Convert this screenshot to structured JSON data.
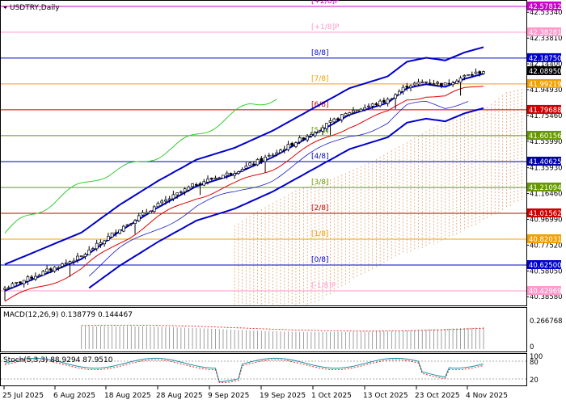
{
  "symbol_title": "USDTRY,Daily",
  "macd_label": "MACD(12,26,9) 0.138779 0.144467",
  "stoch_label": "Stoch(5,3,3) 88.9294 87.9510",
  "colors": {
    "bull_body": "#ffffff",
    "bear_body": "#000000",
    "bollinger": "#0000cc",
    "envelope_red": "#e00000",
    "envelope_thin": "#1a1acc",
    "green_line": "#33cc33",
    "ichimoku_cloud": "#e0a070"
  },
  "price_axis": {
    "ylim": [
      40.32,
      42.62
    ],
    "ticks": [
      "42.53340",
      "42.33810",
      "42.14400",
      "41.94930",
      "41.75460",
      "41.55990",
      "41.35930",
      "41.16460",
      "40.96990",
      "40.77520",
      "40.58050",
      "40.38580"
    ]
  },
  "murrey_levels": [
    {
      "label": "[+2/8]P",
      "price": 42.57812,
      "tag": "42.57812",
      "color": "#cc00cc",
      "tag_bg": "#cc00cc"
    },
    {
      "label": "[+1/8]P",
      "price": 42.38281,
      "tag": "42.38281",
      "color": "#ff99cc",
      "tag_bg": "#ff99cc"
    },
    {
      "label": "[8/8]",
      "price": 42.1875,
      "tag": "42.18750",
      "color": "#0000cc",
      "tag_bg": "#0000cc"
    },
    {
      "label": "[7/8]",
      "price": 41.99219,
      "tag": "41.99219",
      "color": "#f0a000",
      "tag_bg": "#f0a000"
    },
    {
      "label": "[6/8]",
      "price": 41.79688,
      "tag": "41.79688",
      "color": "#cc0000",
      "tag_bg": "#cc0000"
    },
    {
      "label": "[5/8]",
      "price": 41.60156,
      "tag": "41.60156",
      "color": "#669900",
      "tag_bg": "#669900"
    },
    {
      "label": "[4/8]",
      "price": 41.40625,
      "tag": "41.40625",
      "color": "#0000aa",
      "tag_bg": "#0000aa"
    },
    {
      "label": "[3/8]",
      "price": 41.21094,
      "tag": "41.21094",
      "color": "#669900",
      "tag_bg": "#669900"
    },
    {
      "label": "[2/8]",
      "price": 41.01562,
      "tag": "41.01562",
      "color": "#cc0000",
      "tag_bg": "#cc0000"
    },
    {
      "label": "[1/8]",
      "price": 40.82031,
      "tag": "40.82031",
      "color": "#f0a000",
      "tag_bg": "#f0a000"
    },
    {
      "label": "[0/8]",
      "price": 40.625,
      "tag": "40.62500",
      "color": "#0000cc",
      "tag_bg": "#0000cc"
    },
    {
      "label": "[-1/8]P",
      "price": 40.42969,
      "tag": "40.42969",
      "color": "#ff99cc",
      "tag_bg": "#ff99cc"
    }
  ],
  "current_price": {
    "price": 42.0895,
    "tag": "42.08950"
  },
  "macd_axis": {
    "ticks": [
      "0.266768",
      "0"
    ],
    "ylim": [
      0,
      0.3
    ]
  },
  "stoch_axis": {
    "ticks": [
      "100",
      "80",
      "20"
    ]
  },
  "x_axis_labels": [
    "25 Jul 2025",
    "6 Aug 2025",
    "18 Aug 2025",
    "28 Aug 2025",
    "9 Sep 2025",
    "19 Sep 2025",
    "1 Oct 2025",
    "13 Oct 2025",
    "23 Oct 2025",
    "4 Nov 2025"
  ],
  "chart_data": {
    "type": "candlestick",
    "anchors": [
      [
        0,
        40.45
      ],
      [
        10,
        40.57
      ],
      [
        20,
        40.69
      ],
      [
        30,
        40.9
      ],
      [
        40,
        41.08
      ],
      [
        50,
        41.24
      ],
      [
        60,
        41.33
      ],
      [
        70,
        41.46
      ],
      [
        80,
        41.62
      ],
      [
        90,
        41.78
      ],
      [
        100,
        41.87
      ],
      [
        105,
        41.98
      ],
      [
        110,
        42.01
      ],
      [
        115,
        41.99
      ],
      [
        120,
        42.05
      ],
      [
        125,
        42.09
      ]
    ],
    "candle_count": 126
  }
}
